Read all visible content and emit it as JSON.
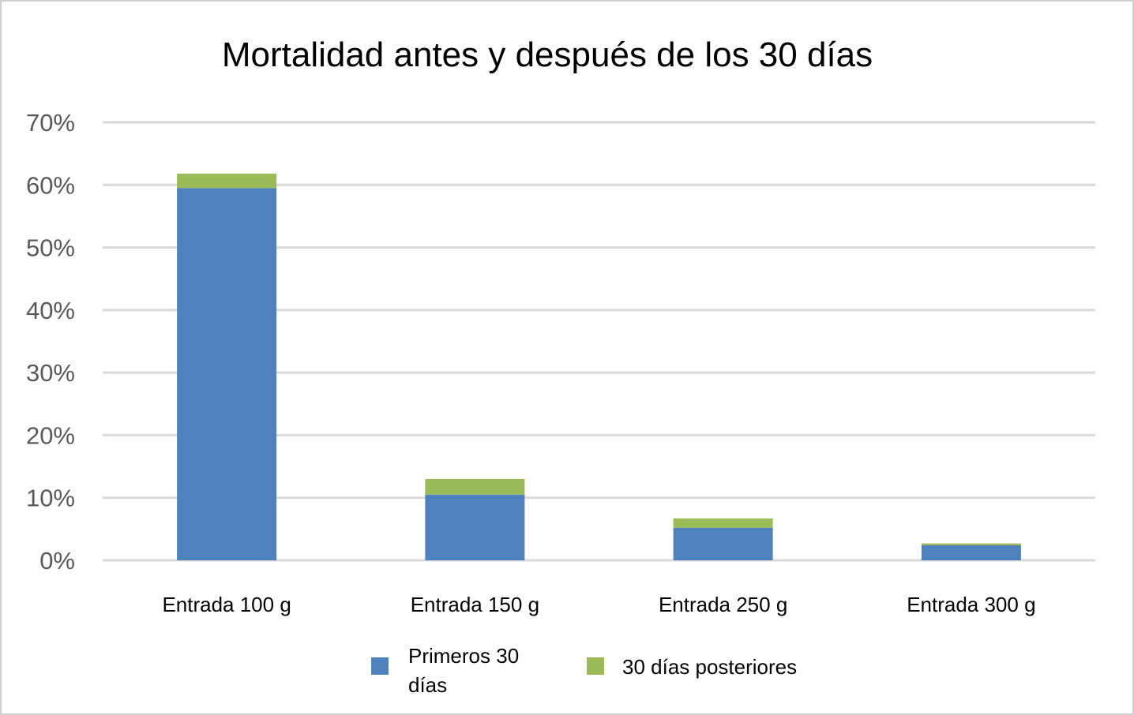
{
  "chart_data": {
    "type": "bar",
    "stacked": true,
    "title": "Mortalidad antes y después de los 30 días",
    "categories": [
      "Entrada 100 g",
      "Entrada 150 g",
      "Entrada 250 g",
      "Entrada 300 g"
    ],
    "series": [
      {
        "name": "Primeros 30 días",
        "legend_lines": [
          "Primeros 30",
          "días"
        ],
        "color": "#4F81BD",
        "values": [
          59.5,
          10.5,
          5.2,
          2.4
        ]
      },
      {
        "name": "30 días posteriores",
        "legend_lines": [
          "30 días posteriores"
        ],
        "color": "#9BBB59",
        "values": [
          2.3,
          2.5,
          1.5,
          0.3
        ]
      }
    ],
    "ylim": [
      0,
      70
    ],
    "yticks": [
      0,
      10,
      20,
      30,
      40,
      50,
      60,
      70
    ],
    "ytick_labels": [
      "0%",
      "10%",
      "20%",
      "30%",
      "40%",
      "50%",
      "60%",
      "70%"
    ],
    "grid": true,
    "grid_color": "#D9D9D9",
    "legend_position": "bottom"
  }
}
